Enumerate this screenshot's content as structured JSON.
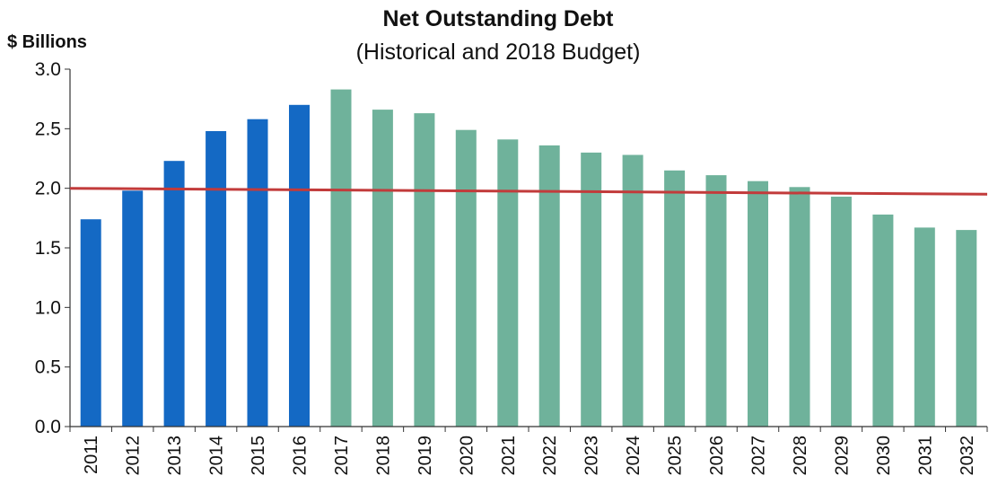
{
  "chart_data": {
    "type": "bar",
    "title": "Net Outstanding Debt",
    "subtitle": "(Historical and 2018 Budget)",
    "ylabel": "$ Billions",
    "xlabel": "",
    "ylim": [
      0,
      3.0
    ],
    "yticks": [
      "0.0",
      "0.5",
      "1.0",
      "1.5",
      "2.0",
      "2.5",
      "3.0"
    ],
    "grid": false,
    "legend": "none",
    "categories": [
      "2011",
      "2012",
      "2013",
      "2014",
      "2015",
      "2016",
      "2017",
      "2018",
      "2019",
      "2020",
      "2021",
      "2022",
      "2023",
      "2024",
      "2025",
      "2026",
      "2027",
      "2028",
      "2029",
      "2030",
      "2031",
      "2032"
    ],
    "series": [
      {
        "color": "#1469c4",
        "values": [
          1.74,
          1.98,
          2.23,
          2.48,
          2.58,
          2.7,
          null,
          null,
          null,
          null,
          null,
          null,
          null,
          null,
          null,
          null,
          null,
          null,
          null,
          null,
          null,
          null
        ]
      },
      {
        "color": "#6fb29b",
        "values": [
          null,
          null,
          null,
          null,
          null,
          null,
          2.83,
          2.66,
          2.63,
          2.49,
          2.41,
          2.36,
          2.3,
          2.28,
          2.15,
          2.11,
          2.06,
          2.01,
          1.93,
          1.78,
          1.67,
          1.65
        ]
      }
    ],
    "reference_line": {
      "color": "#c23b3b",
      "start_value": 2.0,
      "end_value": 1.95
    }
  }
}
